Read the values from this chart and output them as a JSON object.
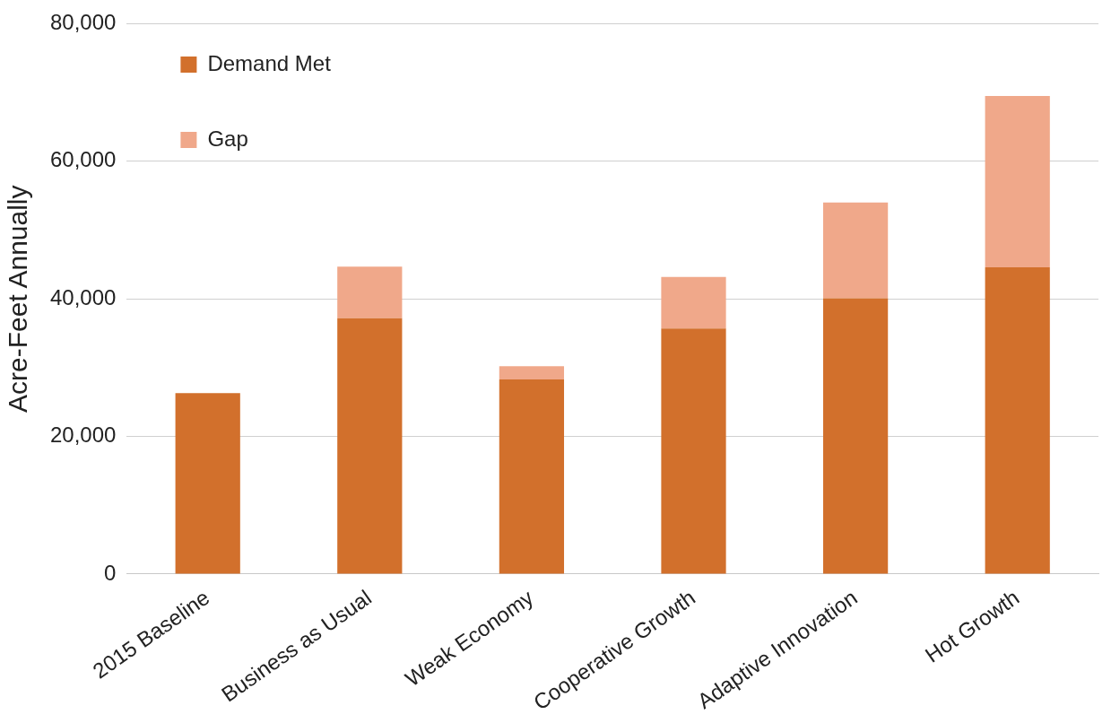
{
  "chart_data": {
    "type": "bar",
    "stacked": true,
    "ylabel": "Acre-Feet Annually",
    "categories": [
      "2015 Baseline",
      "Business as Usual",
      "Weak Economy",
      "Cooperative Growth",
      "Adaptive Innovation",
      "Hot Growth"
    ],
    "series": [
      {
        "name": "Demand Met",
        "color": "#d2702c",
        "values": [
          26300,
          37200,
          28300,
          35700,
          40100,
          44600
        ]
      },
      {
        "name": "Gap",
        "color": "#f0a88a",
        "values": [
          null,
          7500,
          1900,
          7500,
          13900,
          24900
        ]
      }
    ],
    "ylim": [
      0,
      80000
    ],
    "yticks": [
      {
        "value": 0,
        "label": "0"
      },
      {
        "value": 20000,
        "label": "20,000"
      },
      {
        "value": 40000,
        "label": "40,000"
      },
      {
        "value": 60000,
        "label": "60,000"
      },
      {
        "value": 80000,
        "label": "80,000"
      }
    ],
    "grid": "y",
    "legend": "top left"
  }
}
